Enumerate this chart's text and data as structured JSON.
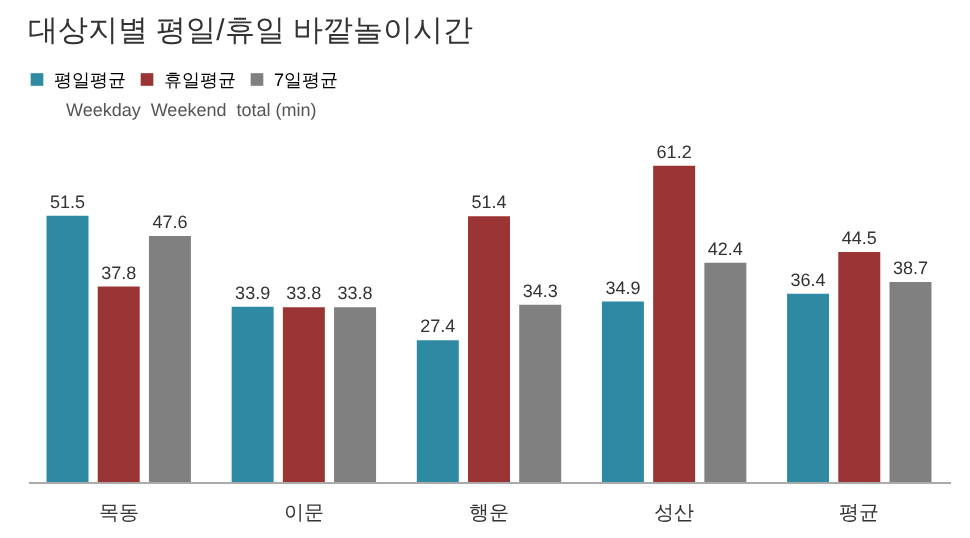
{
  "chart_data": {
    "type": "bar",
    "title": "대상지별 평일/휴일 바깥놀이시간",
    "categories": [
      "목동",
      "이문",
      "행운",
      "성산",
      "평균"
    ],
    "series": [
      {
        "name": "평일평균",
        "color": "#2e8aa3",
        "values": [
          51.5,
          33.9,
          27.4,
          34.9,
          36.4
        ]
      },
      {
        "name": "휴일평균",
        "color": "#9b3535",
        "values": [
          37.8,
          33.8,
          51.4,
          61.2,
          44.5
        ]
      },
      {
        "name": "7일평균",
        "color": "#808080",
        "values": [
          47.6,
          33.8,
          34.3,
          42.4,
          38.7
        ]
      }
    ],
    "annotations": [
      "Weekday  Weekend  total (min)"
    ],
    "data_labels": true,
    "legend": "top left"
  }
}
